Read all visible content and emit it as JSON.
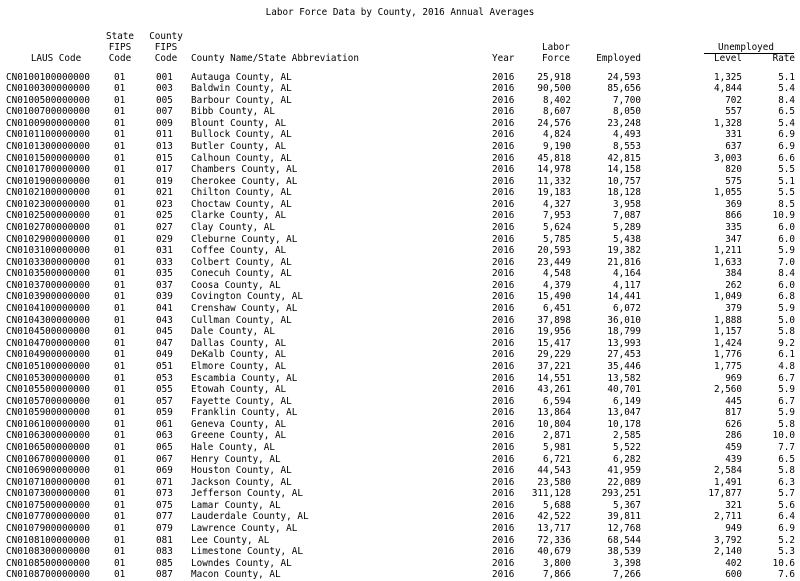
{
  "title": "Labor Force Data by County, 2016 Annual Averages",
  "headers": {
    "laus": "LAUS Code",
    "state_fips": [
      "State",
      "FIPS",
      "Code"
    ],
    "county_fips": [
      "County",
      "FIPS",
      "Code"
    ],
    "county_name": "County Name/State Abbreviation",
    "year": "Year",
    "labor_force": [
      "Labor",
      "Force"
    ],
    "employed": "Employed",
    "unemployed": "Unemployed",
    "level": "Level",
    "rate": "Rate"
  },
  "rows": [
    [
      "CN0100100000000",
      "01",
      "001",
      "Autauga County, AL",
      "2016",
      "25,918",
      "24,593",
      "1,325",
      "5.1"
    ],
    [
      "CN0100300000000",
      "01",
      "003",
      "Baldwin County, AL",
      "2016",
      "90,500",
      "85,656",
      "4,844",
      "5.4"
    ],
    [
      "CN0100500000000",
      "01",
      "005",
      "Barbour County, AL",
      "2016",
      "8,402",
      "7,700",
      "702",
      "8.4"
    ],
    [
      "CN0100700000000",
      "01",
      "007",
      "Bibb County, AL",
      "2016",
      "8,607",
      "8,050",
      "557",
      "6.5"
    ],
    [
      "CN0100900000000",
      "01",
      "009",
      "Blount County, AL",
      "2016",
      "24,576",
      "23,248",
      "1,328",
      "5.4"
    ],
    [
      "CN0101100000000",
      "01",
      "011",
      "Bullock County, AL",
      "2016",
      "4,824",
      "4,493",
      "331",
      "6.9"
    ],
    [
      "CN0101300000000",
      "01",
      "013",
      "Butler County, AL",
      "2016",
      "9,190",
      "8,553",
      "637",
      "6.9"
    ],
    [
      "CN0101500000000",
      "01",
      "015",
      "Calhoun County, AL",
      "2016",
      "45,818",
      "42,815",
      "3,003",
      "6.6"
    ],
    [
      "CN0101700000000",
      "01",
      "017",
      "Chambers County, AL",
      "2016",
      "14,978",
      "14,158",
      "820",
      "5.5"
    ],
    [
      "CN0101900000000",
      "01",
      "019",
      "Cherokee County, AL",
      "2016",
      "11,332",
      "10,757",
      "575",
      "5.1"
    ],
    [
      "CN0102100000000",
      "01",
      "021",
      "Chilton County, AL",
      "2016",
      "19,183",
      "18,128",
      "1,055",
      "5.5"
    ],
    [
      "CN0102300000000",
      "01",
      "023",
      "Choctaw County, AL",
      "2016",
      "4,327",
      "3,958",
      "369",
      "8.5"
    ],
    [
      "CN0102500000000",
      "01",
      "025",
      "Clarke County, AL",
      "2016",
      "7,953",
      "7,087",
      "866",
      "10.9"
    ],
    [
      "CN0102700000000",
      "01",
      "027",
      "Clay County, AL",
      "2016",
      "5,624",
      "5,289",
      "335",
      "6.0"
    ],
    [
      "CN0102900000000",
      "01",
      "029",
      "Cleburne County, AL",
      "2016",
      "5,785",
      "5,438",
      "347",
      "6.0"
    ],
    [
      "CN0103100000000",
      "01",
      "031",
      "Coffee County, AL",
      "2016",
      "20,593",
      "19,382",
      "1,211",
      "5.9"
    ],
    [
      "CN0103300000000",
      "01",
      "033",
      "Colbert County, AL",
      "2016",
      "23,449",
      "21,816",
      "1,633",
      "7.0"
    ],
    [
      "CN0103500000000",
      "01",
      "035",
      "Conecuh County, AL",
      "2016",
      "4,548",
      "4,164",
      "384",
      "8.4"
    ],
    [
      "CN0103700000000",
      "01",
      "037",
      "Coosa County, AL",
      "2016",
      "4,379",
      "4,117",
      "262",
      "6.0"
    ],
    [
      "CN0103900000000",
      "01",
      "039",
      "Covington County, AL",
      "2016",
      "15,490",
      "14,441",
      "1,049",
      "6.8"
    ],
    [
      "CN0104100000000",
      "01",
      "041",
      "Crenshaw County, AL",
      "2016",
      "6,451",
      "6,072",
      "379",
      "5.9"
    ],
    [
      "CN0104300000000",
      "01",
      "043",
      "Cullman County, AL",
      "2016",
      "37,898",
      "36,010",
      "1,888",
      "5.0"
    ],
    [
      "CN0104500000000",
      "01",
      "045",
      "Dale County, AL",
      "2016",
      "19,956",
      "18,799",
      "1,157",
      "5.8"
    ],
    [
      "CN0104700000000",
      "01",
      "047",
      "Dallas County, AL",
      "2016",
      "15,417",
      "13,993",
      "1,424",
      "9.2"
    ],
    [
      "CN0104900000000",
      "01",
      "049",
      "DeKalb County, AL",
      "2016",
      "29,229",
      "27,453",
      "1,776",
      "6.1"
    ],
    [
      "CN0105100000000",
      "01",
      "051",
      "Elmore County, AL",
      "2016",
      "37,221",
      "35,446",
      "1,775",
      "4.8"
    ],
    [
      "CN0105300000000",
      "01",
      "053",
      "Escambia County, AL",
      "2016",
      "14,551",
      "13,582",
      "969",
      "6.7"
    ],
    [
      "CN0105500000000",
      "01",
      "055",
      "Etowah County, AL",
      "2016",
      "43,261",
      "40,701",
      "2,560",
      "5.9"
    ],
    [
      "CN0105700000000",
      "01",
      "057",
      "Fayette County, AL",
      "2016",
      "6,594",
      "6,149",
      "445",
      "6.7"
    ],
    [
      "CN0105900000000",
      "01",
      "059",
      "Franklin County, AL",
      "2016",
      "13,864",
      "13,047",
      "817",
      "5.9"
    ],
    [
      "CN0106100000000",
      "01",
      "061",
      "Geneva County, AL",
      "2016",
      "10,804",
      "10,178",
      "626",
      "5.8"
    ],
    [
      "CN0106300000000",
      "01",
      "063",
      "Greene County, AL",
      "2016",
      "2,871",
      "2,585",
      "286",
      "10.0"
    ],
    [
      "CN0106500000000",
      "01",
      "065",
      "Hale County, AL",
      "2016",
      "5,981",
      "5,522",
      "459",
      "7.7"
    ],
    [
      "CN0106700000000",
      "01",
      "067",
      "Henry County, AL",
      "2016",
      "6,721",
      "6,282",
      "439",
      "6.5"
    ],
    [
      "CN0106900000000",
      "01",
      "069",
      "Houston County, AL",
      "2016",
      "44,543",
      "41,959",
      "2,584",
      "5.8"
    ],
    [
      "CN0107100000000",
      "01",
      "071",
      "Jackson County, AL",
      "2016",
      "23,580",
      "22,089",
      "1,491",
      "6.3"
    ],
    [
      "CN0107300000000",
      "01",
      "073",
      "Jefferson County, AL",
      "2016",
      "311,128",
      "293,251",
      "17,877",
      "5.7"
    ],
    [
      "CN0107500000000",
      "01",
      "075",
      "Lamar County, AL",
      "2016",
      "5,688",
      "5,367",
      "321",
      "5.6"
    ],
    [
      "CN0107700000000",
      "01",
      "077",
      "Lauderdale County, AL",
      "2016",
      "42,522",
      "39,811",
      "2,711",
      "6.4"
    ],
    [
      "CN0107900000000",
      "01",
      "079",
      "Lawrence County, AL",
      "2016",
      "13,717",
      "12,768",
      "949",
      "6.9"
    ],
    [
      "CN0108100000000",
      "01",
      "081",
      "Lee County, AL",
      "2016",
      "72,336",
      "68,544",
      "3,792",
      "5.2"
    ],
    [
      "CN0108300000000",
      "01",
      "083",
      "Limestone County, AL",
      "2016",
      "40,679",
      "38,539",
      "2,140",
      "5.3"
    ],
    [
      "CN0108500000000",
      "01",
      "085",
      "Lowndes County, AL",
      "2016",
      "3,800",
      "3,398",
      "402",
      "10.6"
    ],
    [
      "CN0108700000000",
      "01",
      "087",
      "Macon County, AL",
      "2016",
      "7,866",
      "7,266",
      "600",
      "7.6"
    ]
  ]
}
